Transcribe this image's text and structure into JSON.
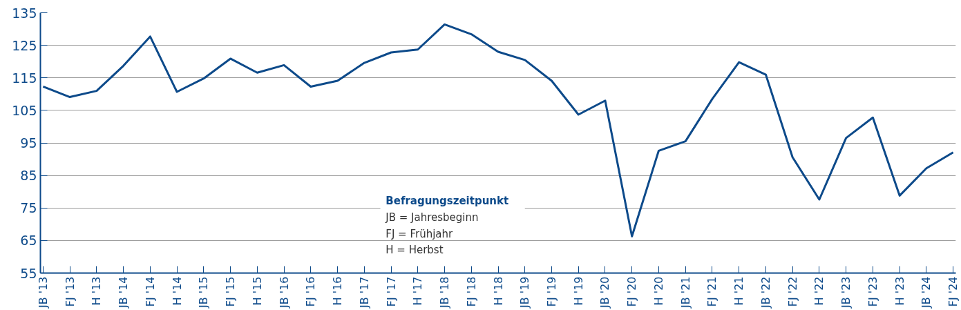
{
  "chart_data": {
    "type": "line",
    "categories": [
      "JB '13",
      "FJ '13",
      "H '13",
      "JB '14",
      "FJ '14",
      "H '14",
      "JB '15",
      "FJ '15",
      "H '15",
      "JB '16",
      "FJ '16",
      "H '16",
      "JB '17",
      "FJ '17",
      "H '17",
      "JB '18",
      "FJ '18",
      "H '18",
      "JB '19",
      "FJ '19",
      "H '19",
      "JB '20",
      "FJ '20",
      "H '20",
      "JB '21",
      "FJ '21",
      "H '21",
      "JB '22",
      "FJ '22",
      "H '22",
      "JB '23",
      "FJ '23",
      "H '23",
      "JB '24",
      "FJ '24"
    ],
    "series": [
      {
        "color": "#0d4a8a",
        "values": [
          112.3,
          109.1,
          111,
          118.7,
          127.7,
          110.7,
          114.8,
          120.9,
          116.6,
          118.9,
          112.3,
          114.1,
          119.6,
          122.8,
          123.7,
          131.4,
          128.4,
          123,
          120.5,
          114.1,
          103.7,
          108,
          66.3,
          92.6,
          95.5,
          108.5,
          119.8,
          116,
          90.6,
          77.6,
          96.5,
          102.8,
          78.8,
          87.2,
          92.1
        ]
      }
    ],
    "ylim": [
      55,
      135
    ],
    "yticks": [
      55,
      65,
      75,
      85,
      95,
      105,
      115,
      125,
      135
    ],
    "grid": "y",
    "marker": "none",
    "line_style": "solid",
    "annotations": [
      "Befragungszeitpunkt",
      "JB = Jahresbeginn",
      "FJ = Frühjahr",
      "H = Herbst"
    ]
  }
}
